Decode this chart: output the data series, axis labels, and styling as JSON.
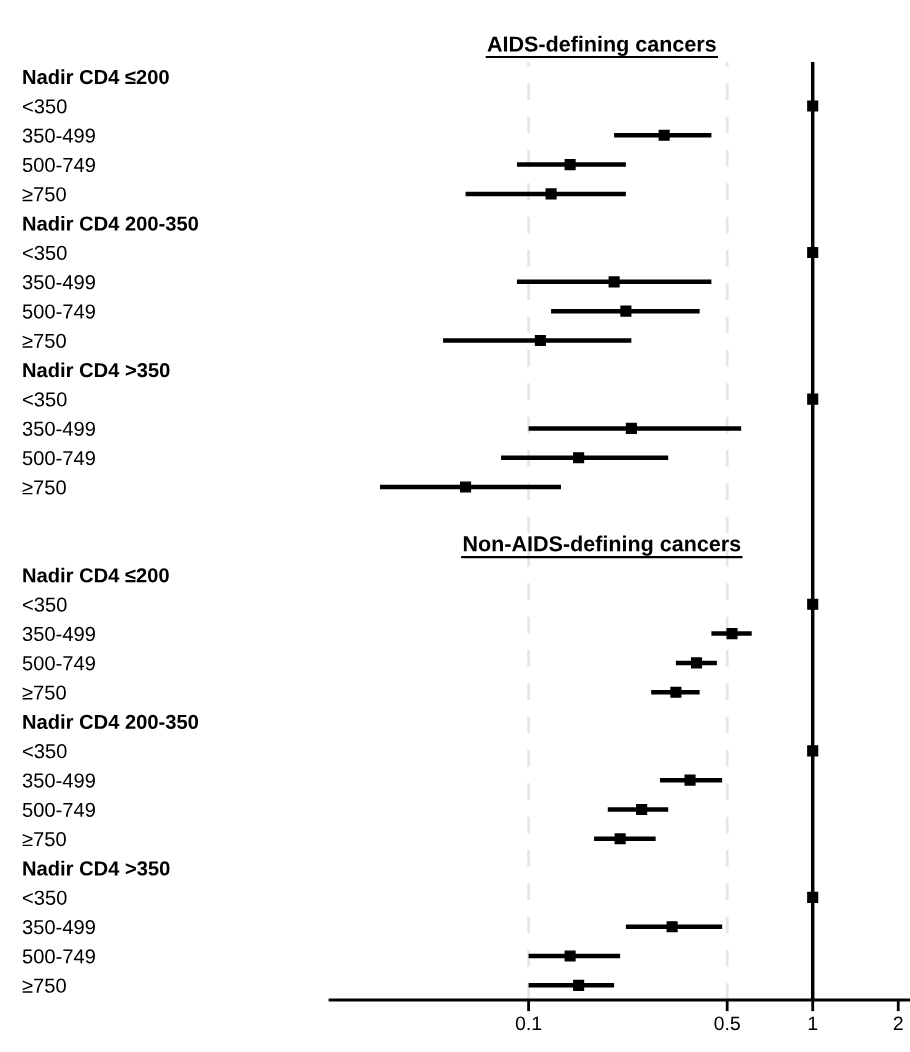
{
  "chart_data": {
    "type": "scatter",
    "orientation": "horizontal",
    "title": "AIDS-defining cancers",
    "log": "x",
    "xlim": [
      0.02,
      2.2
    ],
    "xticks": [
      0.1,
      0.5,
      1,
      2
    ],
    "grid": false,
    "marker": "square",
    "color": "#000000",
    "annotations": [
      "Non-AIDS-defining cancers"
    ],
    "categories": [
      "Nadir CD4 ≤200",
      "<350",
      "350-499",
      "500-749",
      "≥750",
      "Nadir CD4 200-350",
      "<350",
      "350-499",
      "500-749",
      "≥750",
      "Nadir CD4 >350",
      "<350",
      "350-499",
      "500-749",
      "≥750",
      null,
      null,
      "Nadir CD4 ≤200",
      "<350",
      "350-499",
      "500-749",
      "≥750",
      "Nadir CD4 200-350",
      "<350",
      "350-499",
      "500-749",
      "≥750",
      "Nadir CD4 >350",
      "<350",
      "350-499",
      "500-749",
      "≥750"
    ],
    "values": [
      null,
      1,
      0.3,
      0.14,
      0.12,
      null,
      1,
      0.2,
      0.22,
      0.11,
      null,
      1,
      0.23,
      0.15,
      0.06,
      null,
      null,
      null,
      1,
      0.52,
      0.39,
      0.33,
      null,
      1,
      0.37,
      0.25,
      0.21,
      null,
      1,
      0.32,
      0.14,
      0.15
    ],
    "errors": [
      null,
      null,
      [
        0.2,
        0.44
      ],
      [
        0.091,
        0.22
      ],
      [
        0.06,
        0.22
      ],
      null,
      null,
      [
        0.091,
        0.44
      ],
      [
        0.12,
        0.4
      ],
      [
        0.05,
        0.23
      ],
      null,
      null,
      [
        0.1,
        0.56
      ],
      [
        0.08,
        0.31
      ],
      [
        0.03,
        0.13
      ],
      null,
      null,
      null,
      null,
      [
        0.44,
        0.61
      ],
      [
        0.33,
        0.46
      ],
      [
        0.27,
        0.4
      ],
      null,
      null,
      [
        0.29,
        0.48
      ],
      [
        0.19,
        0.31
      ],
      [
        0.17,
        0.28
      ],
      null,
      null,
      [
        0.22,
        0.48
      ],
      [
        0.1,
        0.21
      ],
      [
        0.1,
        0.2
      ]
    ],
    "ref_lines": [
      {
        "axis": "x",
        "value": 0.1,
        "color": "#e6e6e6",
        "line_style": "dashed"
      },
      {
        "axis": "x",
        "value": 0.5,
        "color": "#e6e6e6",
        "line_style": "dashed"
      },
      {
        "axis": "x",
        "value": 1,
        "color": "#000000",
        "line_style": "solid"
      }
    ]
  }
}
